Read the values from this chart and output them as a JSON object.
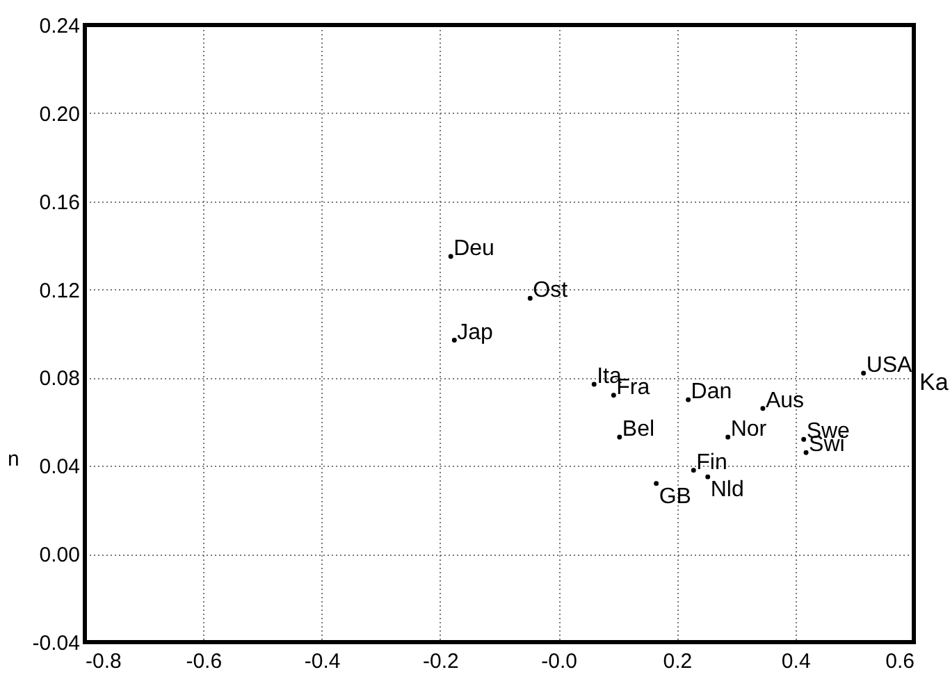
{
  "chart_data": {
    "type": "scatter",
    "ylabel": "n",
    "x": [
      -0.182,
      -0.048,
      -0.176,
      0.06,
      0.093,
      0.103,
      0.219,
      0.286,
      0.345,
      0.414,
      0.418,
      0.515,
      0.228,
      0.252,
      0.165
    ],
    "values": [
      0.135,
      0.116,
      0.097,
      0.077,
      0.072,
      0.053,
      0.07,
      0.053,
      0.066,
      0.052,
      0.046,
      0.082,
      0.038,
      0.035,
      0.032
    ],
    "color": "#000000",
    "marker": "circle",
    "xlim": [
      -0.8,
      0.6
    ],
    "xticks": [
      -0.8,
      -0.6,
      -0.4,
      -0.2,
      {
        "value": 0,
        "label": "-0.0"
      },
      0.2,
      0.4,
      0.6
    ],
    "ylim": [
      -0.04,
      0.24
    ],
    "yticks": [
      {
        "value": -0.04,
        "label": "-0.04"
      },
      {
        "value": 0,
        "label": "0.00"
      },
      0.04,
      0.08,
      0.12,
      0.16,
      {
        "value": 0.2,
        "label": "0.20"
      },
      0.24
    ],
    "grid": true,
    "annotations": [
      {
        "text": "Deu",
        "x": -0.182,
        "y": 0.135
      },
      {
        "text": "Ost",
        "x": -0.048,
        "y": 0.116
      },
      {
        "text": "Jap",
        "x": -0.176,
        "y": 0.097
      },
      {
        "text": "Ita",
        "x": 0.06,
        "y": 0.077
      },
      {
        "text": "Fra",
        "x": 0.093,
        "y": 0.072
      },
      {
        "text": "Bel",
        "x": 0.103,
        "y": 0.053
      },
      {
        "text": "Dan",
        "x": 0.219,
        "y": 0.07
      },
      {
        "text": "Nor",
        "x": 0.286,
        "y": 0.053
      },
      {
        "text": "Aus",
        "x": 0.345,
        "y": 0.066
      },
      {
        "text": "Swe",
        "x": 0.414,
        "y": 0.052
      },
      {
        "text": "Swi",
        "x": 0.418,
        "y": 0.046
      },
      {
        "text": "USA",
        "x": 0.515,
        "y": 0.082
      },
      {
        "text": "Fin",
        "x": 0.228,
        "y": 0.038
      },
      {
        "text": "Nld",
        "x": 0.252,
        "y": 0.035
      },
      {
        "text": "GB",
        "x": 0.165,
        "y": 0.032
      },
      "Ka"
    ]
  }
}
